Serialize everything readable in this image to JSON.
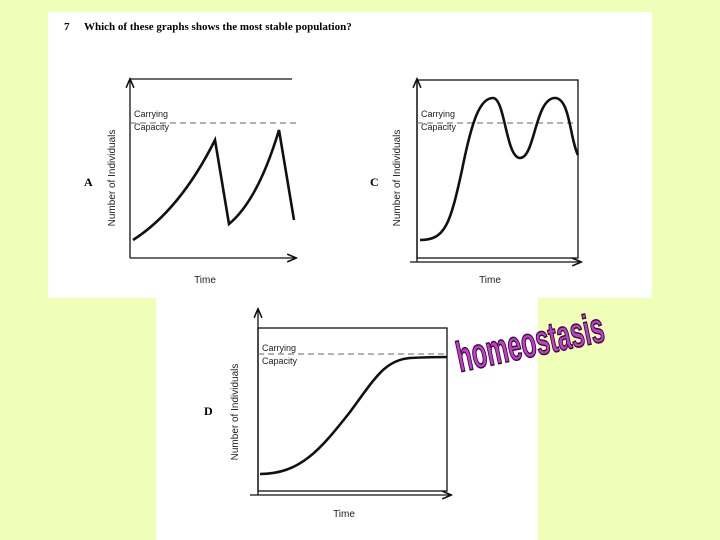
{
  "question": {
    "number": "7",
    "text": "Which of these graphs shows the most stable population?"
  },
  "graphs": [
    {
      "letter": "A",
      "y_label": "Number of Individuals",
      "x_label": "Time",
      "reference_line": [
        "Carrying",
        "Capacity"
      ]
    },
    {
      "letter": "C",
      "y_label": "Number of Individuals",
      "x_label": "Time",
      "reference_line": [
        "Carrying",
        "Capacity"
      ]
    },
    {
      "letter": "D",
      "y_label": "Number of Individuals",
      "x_label": "Time",
      "reference_line": [
        "Carrying",
        "Capacity"
      ]
    }
  ],
  "word_art": "homeostasis"
}
